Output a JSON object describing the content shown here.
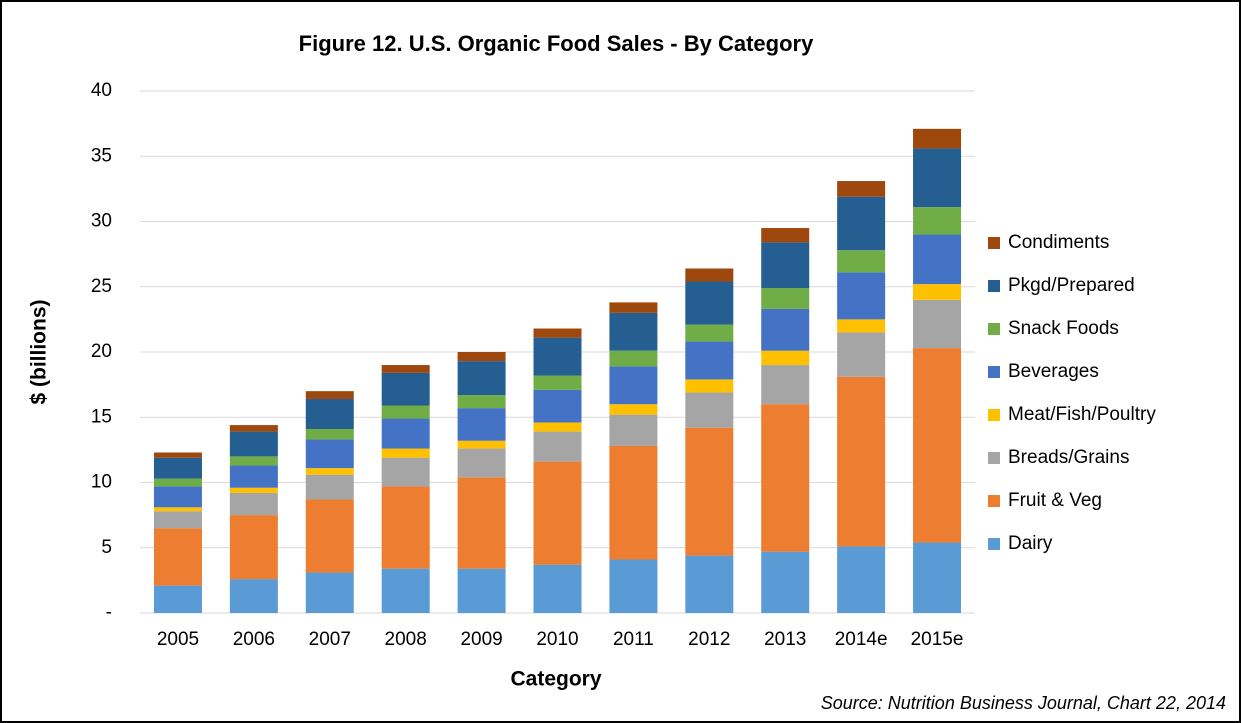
{
  "chart_data": {
    "type": "bar",
    "stacked": true,
    "title": "Figure 12. U.S. Organic Food Sales - By Category",
    "x_label": "Category",
    "y_label": "$ (billions)",
    "source": "Source: Nutrition Business Journal, Chart 22, 2014",
    "categories": [
      "2005",
      "2006",
      "2007",
      "2008",
      "2009",
      "2010",
      "2011",
      "2012",
      "2013",
      "2014e",
      "2015e"
    ],
    "series": [
      {
        "name": "Dairy",
        "color": "#5b9bd5",
        "values": [
          2.1,
          2.6,
          3.1,
          3.4,
          3.4,
          3.7,
          4.1,
          4.4,
          4.7,
          5.1,
          5.4
        ]
      },
      {
        "name": "Fruit & Veg",
        "color": "#ed7d31",
        "values": [
          4.4,
          4.9,
          5.6,
          6.3,
          7.0,
          7.9,
          8.7,
          9.8,
          11.3,
          13.0,
          14.9
        ]
      },
      {
        "name": "Breads/Grains",
        "color": "#a5a5a5",
        "values": [
          1.3,
          1.7,
          1.9,
          2.2,
          2.2,
          2.3,
          2.4,
          2.7,
          3.0,
          3.4,
          3.7
        ]
      },
      {
        "name": "Meat/Fish/Poultry",
        "color": "#ffc000",
        "values": [
          0.3,
          0.4,
          0.5,
          0.7,
          0.6,
          0.7,
          0.8,
          1.0,
          1.1,
          1.0,
          1.2
        ]
      },
      {
        "name": "Beverages",
        "color": "#4472c4",
        "values": [
          1.6,
          1.7,
          2.2,
          2.3,
          2.5,
          2.5,
          2.9,
          2.9,
          3.2,
          3.6,
          3.8
        ]
      },
      {
        "name": "Snack Foods",
        "color": "#70ad47",
        "values": [
          0.6,
          0.7,
          0.8,
          1.0,
          1.0,
          1.1,
          1.2,
          1.3,
          1.6,
          1.7,
          2.1
        ]
      },
      {
        "name": "Pkgd/Prepared",
        "color": "#255e91",
        "values": [
          1.6,
          1.9,
          2.3,
          2.5,
          2.6,
          2.9,
          2.9,
          3.3,
          3.5,
          4.1,
          4.5
        ]
      },
      {
        "name": "Condiments",
        "color": "#9e480e",
        "values": [
          0.4,
          0.5,
          0.6,
          0.6,
          0.7,
          0.7,
          0.8,
          1.0,
          1.1,
          1.2,
          1.5
        ]
      }
    ],
    "ylim": [
      0,
      40
    ],
    "yticks": [
      {
        "value": 0,
        "label": "-"
      },
      5,
      10,
      15,
      20,
      25,
      30,
      35,
      40
    ],
    "grid": true,
    "legend": "right"
  }
}
